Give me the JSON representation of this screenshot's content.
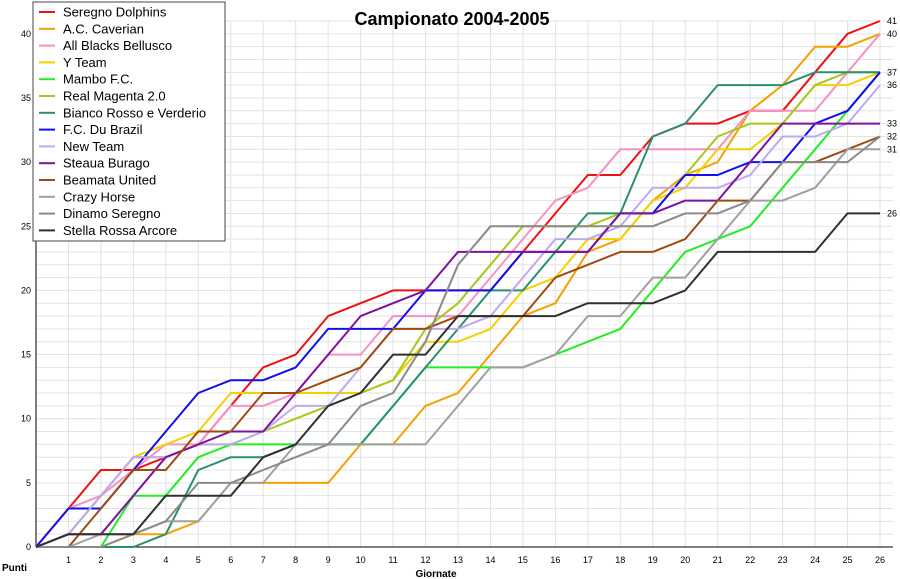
{
  "chart_data": {
    "type": "line",
    "title": "Campionato 2004-2005",
    "xlabel": "Giornate",
    "ylabel": "Punti",
    "x": [
      0,
      1,
      2,
      3,
      4,
      5,
      6,
      7,
      8,
      9,
      10,
      11,
      12,
      13,
      14,
      15,
      16,
      17,
      18,
      19,
      20,
      21,
      22,
      23,
      24,
      25,
      26
    ],
    "x_tick_labels": [
      "1",
      "2",
      "3",
      "4",
      "5",
      "6",
      "7",
      "8",
      "9",
      "10",
      "11",
      "12",
      "13",
      "14",
      "15",
      "16",
      "17",
      "18",
      "19",
      "20",
      "21",
      "22",
      "23",
      "24",
      "25",
      "26"
    ],
    "y_tick_labels": [
      "0",
      "5",
      "10",
      "15",
      "20",
      "25",
      "30",
      "35",
      "40"
    ],
    "ylim": [
      0,
      41
    ],
    "grid": true,
    "legend_position": "top-left",
    "series": [
      {
        "name": "Seregno Dolphins",
        "color": "#ee1111",
        "values": [
          0,
          3,
          6,
          6,
          7,
          8,
          11,
          14,
          15,
          18,
          19,
          20,
          20,
          20,
          20,
          23,
          26,
          29,
          29,
          32,
          33,
          33,
          34,
          34,
          37,
          40,
          41
        ]
      },
      {
        "name": "A.C. Caverian",
        "color": "#f5a000",
        "values": [
          0,
          0,
          0,
          1,
          1,
          2,
          5,
          5,
          5,
          5,
          8,
          8,
          11,
          12,
          15,
          18,
          19,
          23,
          24,
          27,
          29,
          30,
          34,
          36,
          39,
          39,
          40
        ]
      },
      {
        "name": "All Blacks Bellusco",
        "color": "#f890c8",
        "values": [
          0,
          3,
          4,
          6,
          8,
          8,
          11,
          11,
          12,
          15,
          15,
          18,
          18,
          18,
          21,
          24,
          27,
          28,
          31,
          31,
          31,
          31,
          34,
          34,
          34,
          37,
          40
        ]
      },
      {
        "name": "Y Team",
        "color": "#f5d000",
        "values": [
          0,
          1,
          4,
          7,
          8,
          9,
          12,
          12,
          12,
          12,
          12,
          13,
          16,
          16,
          17,
          20,
          21,
          24,
          24,
          27,
          28,
          31,
          31,
          33,
          36,
          36,
          37
        ]
      },
      {
        "name": "Mambo F.C.",
        "color": "#22ee22",
        "values": [
          0,
          0,
          0,
          4,
          4,
          7,
          8,
          8,
          8,
          8,
          8,
          11,
          14,
          14,
          14,
          14,
          15,
          16,
          17,
          20,
          23,
          24,
          25,
          28,
          31,
          34,
          37
        ]
      },
      {
        "name": "Real Magenta 2.0",
        "color": "#a8c818",
        "values": [
          0,
          1,
          4,
          7,
          7,
          8,
          8,
          9,
          10,
          11,
          12,
          13,
          17,
          19,
          22,
          25,
          25,
          25,
          26,
          26,
          29,
          32,
          33,
          33,
          36,
          37,
          37
        ]
      },
      {
        "name": "Bianco Rosso e Verderio",
        "color": "#2a9070",
        "values": [
          0,
          0,
          0,
          0,
          1,
          6,
          7,
          7,
          8,
          8,
          8,
          11,
          14,
          17,
          20,
          20,
          23,
          26,
          26,
          32,
          33,
          36,
          36,
          36,
          37,
          37,
          37
        ]
      },
      {
        "name": "F.C. Du Brazil",
        "color": "#1010ee",
        "values": [
          0,
          3,
          3,
          6,
          9,
          12,
          13,
          13,
          14,
          17,
          17,
          17,
          20,
          20,
          20,
          23,
          23,
          23,
          26,
          26,
          29,
          29,
          30,
          30,
          33,
          34,
          37
        ]
      },
      {
        "name": "New Team",
        "color": "#c0a8f0",
        "values": [
          0,
          1,
          4,
          7,
          7,
          8,
          8,
          9,
          11,
          11,
          14,
          17,
          17,
          17,
          18,
          21,
          24,
          24,
          25,
          28,
          28,
          28,
          29,
          32,
          32,
          33,
          36
        ]
      },
      {
        "name": "Steaua Burago",
        "color": "#8010a0",
        "values": [
          0,
          1,
          1,
          4,
          7,
          8,
          9,
          9,
          12,
          15,
          18,
          19,
          20,
          23,
          23,
          23,
          23,
          23,
          26,
          26,
          27,
          27,
          30,
          33,
          33,
          33,
          33
        ]
      },
      {
        "name": "Beamata United",
        "color": "#a04a10",
        "values": [
          0,
          0,
          3,
          6,
          6,
          9,
          9,
          12,
          12,
          13,
          14,
          17,
          17,
          18,
          18,
          18,
          21,
          22,
          23,
          23,
          24,
          27,
          27,
          30,
          30,
          31,
          32
        ]
      },
      {
        "name": "Crazy Horse",
        "color": "#a0a0a0",
        "values": [
          0,
          0,
          1,
          1,
          2,
          2,
          5,
          5,
          8,
          8,
          8,
          8,
          8,
          11,
          14,
          14,
          15,
          18,
          18,
          21,
          21,
          24,
          27,
          27,
          28,
          31,
          31
        ]
      },
      {
        "name": "Dinamo Seregno",
        "color": "#8a8a8a",
        "values": [
          0,
          0,
          0,
          1,
          2,
          5,
          5,
          6,
          7,
          8,
          11,
          12,
          16,
          22,
          25,
          25,
          25,
          25,
          25,
          25,
          26,
          26,
          27,
          30,
          30,
          30,
          32
        ]
      },
      {
        "name": "Stella Rossa Arcore",
        "color": "#303030",
        "values": [
          0,
          1,
          1,
          1,
          4,
          4,
          4,
          7,
          8,
          11,
          12,
          15,
          15,
          18,
          18,
          18,
          18,
          19,
          19,
          19,
          20,
          23,
          23,
          23,
          23,
          26,
          26
        ]
      }
    ]
  }
}
